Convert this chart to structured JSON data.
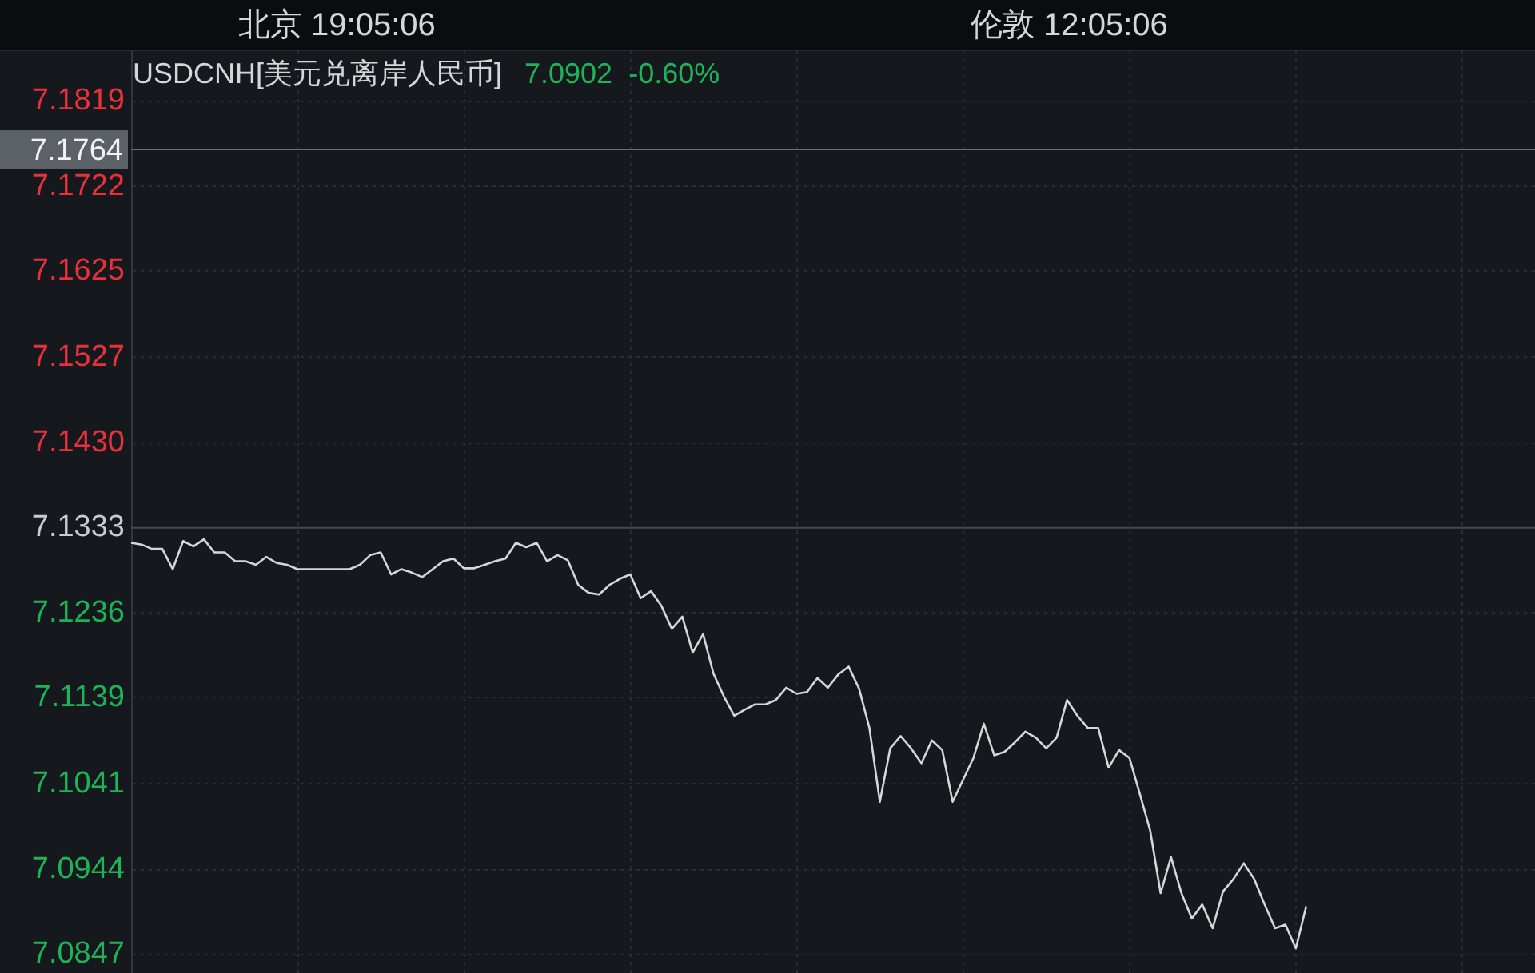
{
  "chart_data": {
    "type": "line",
    "title": "USDCNH[美元兑离岸人民币]",
    "subtitle": "7.0902  -0.60%",
    "annotations": [
      "北京 19:05:06",
      "伦敦 12:05:06"
    ],
    "categories": [
      null,
      null,
      null,
      null,
      null,
      null,
      null,
      null,
      null,
      null,
      null,
      null,
      null,
      null,
      null,
      null,
      null,
      null,
      null,
      null,
      null,
      null,
      null,
      null,
      null,
      null,
      null,
      null,
      null,
      null,
      null,
      null,
      null,
      null,
      null,
      null,
      null,
      null,
      null,
      null,
      null,
      null,
      null,
      null,
      null,
      null,
      null,
      null,
      null,
      null,
      null,
      null,
      null,
      null,
      null,
      null,
      null,
      null,
      null,
      null,
      null,
      null,
      null,
      null,
      null,
      null,
      null,
      null,
      null,
      null,
      null,
      null,
      null,
      null,
      null,
      null,
      null,
      null,
      null,
      null,
      null,
      null,
      null,
      null,
      null,
      null,
      null,
      null,
      null,
      null,
      null,
      null,
      null,
      null,
      null,
      null,
      null,
      null,
      null,
      null,
      null,
      null,
      null,
      null,
      null,
      null,
      null,
      null,
      null,
      null,
      null,
      null,
      null,
      null,
      null,
      null,
      null,
      null,
      null,
      null,
      null,
      null,
      null,
      null,
      null,
      null,
      null,
      null,
      null,
      null,
      null,
      null,
      null,
      null,
      null,
      null
    ],
    "series": [
      {
        "color": "#d6d7d9",
        "values": [
          7.1316,
          7.1314,
          7.1309,
          7.1309,
          7.1286,
          7.1318,
          7.1312,
          7.132,
          7.1305,
          7.1305,
          7.1295,
          7.1295,
          7.1291,
          7.13,
          7.1293,
          7.1291,
          7.1286,
          7.1286,
          7.1286,
          7.1286,
          7.1286,
          7.1286,
          7.1291,
          7.1302,
          7.1305,
          7.128,
          7.1286,
          7.1282,
          7.1277,
          7.1286,
          7.1295,
          7.1298,
          7.1287,
          7.1287,
          7.1291,
          7.1295,
          7.1298,
          7.1316,
          7.1311,
          7.1316,
          7.1295,
          7.1302,
          7.1296,
          7.1268,
          7.1259,
          7.1257,
          7.1268,
          7.1275,
          7.128,
          7.1253,
          7.1261,
          7.1244,
          7.1218,
          7.1232,
          7.1191,
          7.1212,
          7.1167,
          7.1141,
          7.1119,
          7.1126,
          7.1132,
          7.1132,
          7.1137,
          7.1151,
          7.1144,
          7.1146,
          7.1162,
          7.1151,
          7.1166,
          7.1175,
          7.115,
          7.1105,
          7.1021,
          7.1082,
          7.1096,
          7.1082,
          7.1065,
          7.1091,
          7.108,
          7.1021,
          7.1046,
          7.1071,
          7.111,
          7.1074,
          7.1078,
          7.1089,
          7.1101,
          7.1094,
          7.1082,
          7.1094,
          7.1137,
          7.1119,
          7.1105,
          7.1105,
          7.106,
          7.108,
          7.1071,
          7.103,
          7.0988,
          7.0917,
          7.0958,
          7.0917,
          7.0888,
          7.0904,
          7.0877,
          7.0919,
          7.0933,
          7.0951,
          7.0933,
          7.0904,
          7.0877,
          7.0881,
          7.0854,
          7.0902,
          null,
          null,
          null,
          null,
          null,
          null,
          null,
          null,
          null,
          null,
          null,
          null,
          null,
          null,
          null,
          null,
          null,
          null,
          null,
          null,
          null,
          null
        ]
      }
    ],
    "ylim": [
      7.0826,
      7.1876
    ],
    "yticks": [
      7.0847,
      7.0944,
      7.1041,
      7.1139,
      7.1236,
      7.1333,
      {
        "value": 7.143,
        "label": "7.1430"
      },
      7.1527,
      7.1625,
      7.1722,
      7.1819
    ],
    "grid": true,
    "tick_labels": "y",
    "ref_lines": [
      {
        "axis": "y",
        "value": 7.1333,
        "color": "#45484d"
      },
      {
        "axis": "y",
        "value": 7.1764,
        "label": "7.1764",
        "color": "#6b6e73"
      }
    ]
  }
}
